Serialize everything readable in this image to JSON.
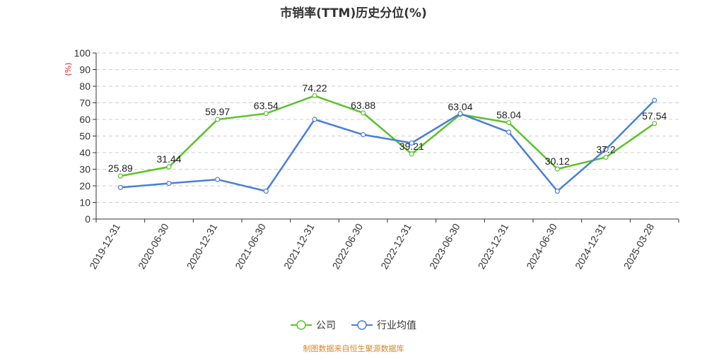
{
  "chart_title": "市销率(TTM)历史分位(%)",
  "source_note": "制图数据来自恒生聚源数据库",
  "colors": {
    "company": "#5ac229",
    "industry": "#4a7fdc",
    "ylabel": "#e02020",
    "source": "#d4882a",
    "grid": "#cccccc",
    "axis": "#333333"
  },
  "chart_data": {
    "type": "line",
    "title": "市销率(TTM)历史分位(%)",
    "ylabel": "(%)",
    "xlabel": "",
    "ylim": [
      0,
      100
    ],
    "yticks": [
      0,
      10,
      20,
      30,
      40,
      50,
      60,
      70,
      80,
      90,
      100
    ],
    "grid": true,
    "legend_position": "bottom-center",
    "categories": [
      "2019-12-31",
      "2020-06-30",
      "2020-12-31",
      "2021-06-30",
      "2021-12-31",
      "2022-06-30",
      "2022-12-31",
      "2023-06-30",
      "2023-12-31",
      "2024-06-30",
      "2024-12-31",
      "2025-03-28"
    ],
    "series": [
      {
        "name": "公司",
        "color": "#5ac229",
        "show_labels": true,
        "values": [
          25.89,
          31.44,
          59.97,
          63.54,
          74.22,
          63.88,
          39.21,
          63.04,
          58.04,
          30.12,
          37.2,
          57.54
        ],
        "labels": [
          "25.89",
          "31.44",
          "59.97",
          "63.54",
          "74.22",
          "63.88",
          "39.21",
          "63.04",
          "58.04",
          "30.12",
          "37.2",
          "57.54"
        ]
      },
      {
        "name": "行业均值",
        "color": "#4a7fdc",
        "show_labels": false,
        "values": [
          19,
          21.5,
          23.8,
          16.8,
          60,
          50.8,
          45.8,
          63.5,
          52.3,
          16.8,
          42,
          71.5
        ]
      }
    ]
  }
}
